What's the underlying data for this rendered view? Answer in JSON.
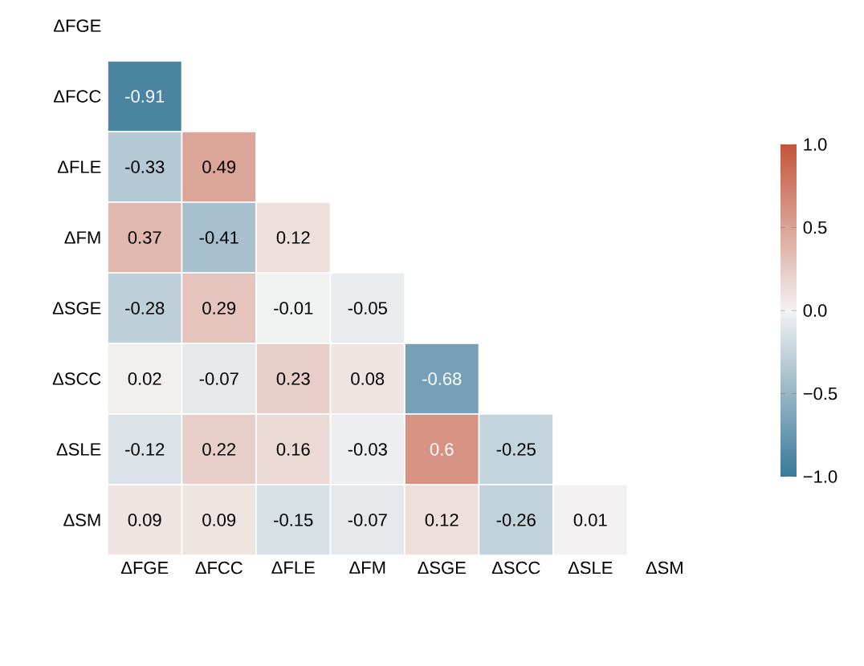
{
  "chart_data": {
    "type": "heatmap",
    "categories": [
      "ΔFGE",
      "ΔFCC",
      "ΔFLE",
      "ΔFM",
      "ΔSGE",
      "ΔSCC",
      "ΔSLE",
      "ΔSM"
    ],
    "y_categories": [
      "ΔFGE",
      "ΔFCC",
      "ΔFLE",
      "ΔFM",
      "ΔSGE",
      "ΔSCC",
      "ΔSLE",
      "ΔSM"
    ],
    "cells": [
      [
        null,
        null,
        null,
        null,
        null,
        null,
        null,
        null
      ],
      [
        -0.91,
        null,
        null,
        null,
        null,
        null,
        null,
        null
      ],
      [
        -0.33,
        0.49,
        null,
        null,
        null,
        null,
        null,
        null
      ],
      [
        0.37,
        -0.41,
        0.12,
        null,
        null,
        null,
        null,
        null
      ],
      [
        -0.28,
        0.29,
        -0.01,
        -0.05,
        null,
        null,
        null,
        null
      ],
      [
        0.02,
        -0.07,
        0.23,
        0.08,
        -0.68,
        null,
        null,
        null
      ],
      [
        -0.12,
        0.22,
        0.16,
        -0.03,
        0.6,
        -0.25,
        null,
        null
      ],
      [
        0.09,
        0.09,
        -0.15,
        -0.07,
        0.12,
        -0.26,
        0.01,
        null
      ]
    ],
    "clim": [
      -1,
      1
    ],
    "cticks": [
      {
        "value": 1,
        "label": "1.0"
      },
      {
        "value": 0.5,
        "label": "0.5"
      },
      {
        "value": 0,
        "label": "0.0"
      },
      {
        "value": -0.5,
        "label": "−0.5"
      },
      {
        "value": -1,
        "label": "−1.0"
      }
    ],
    "data_labels": true
  }
}
